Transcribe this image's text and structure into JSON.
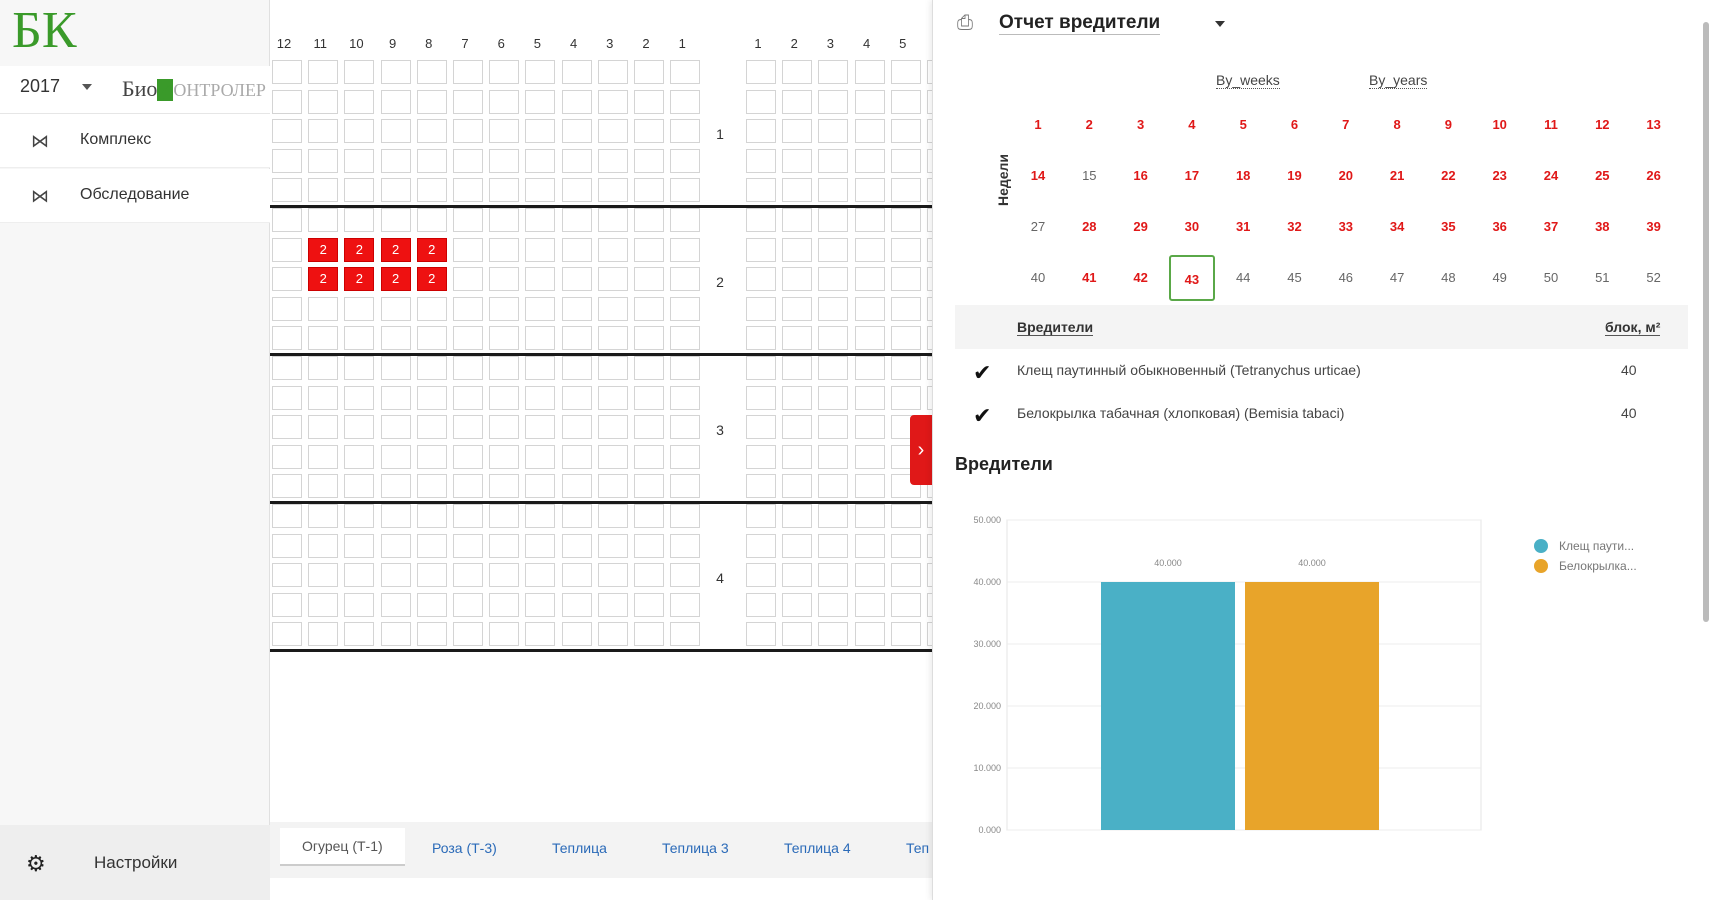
{
  "sidebar": {
    "logo": "БК",
    "year": "2017",
    "brand_prefix": "Био",
    "brand_suffix": "ОНТРОЛЕР",
    "items": [
      {
        "label": "Комплекс",
        "icon": "network-icon"
      },
      {
        "label": "Обследование",
        "icon": "network-icon"
      }
    ],
    "settings_label": "Настройки"
  },
  "grid": {
    "left_columns": [
      "12",
      "11",
      "10",
      "9",
      "8",
      "7",
      "6",
      "5",
      "4",
      "3",
      "2",
      "1"
    ],
    "right_columns": [
      "1",
      "2",
      "3",
      "4",
      "5"
    ],
    "zones": [
      "1",
      "2",
      "3",
      "4"
    ],
    "marked_value": "2"
  },
  "tabs": [
    "Огурец (Т-1)",
    "Роза (Т-3)",
    "Теплица",
    "Теплица 3",
    "Теплица 4",
    "Теп"
  ],
  "panel": {
    "report_title": "Отчет вредители",
    "view_weeks": "By_weeks",
    "view_years": "By_years",
    "weeks_caption": "Недели",
    "weeks": [
      {
        "n": "1",
        "red": true
      },
      {
        "n": "2",
        "red": true
      },
      {
        "n": "3",
        "red": true
      },
      {
        "n": "4",
        "red": true
      },
      {
        "n": "5",
        "red": true
      },
      {
        "n": "6",
        "red": true
      },
      {
        "n": "7",
        "red": true
      },
      {
        "n": "8",
        "red": true
      },
      {
        "n": "9",
        "red": true
      },
      {
        "n": "10",
        "red": true
      },
      {
        "n": "11",
        "red": true
      },
      {
        "n": "12",
        "red": true
      },
      {
        "n": "13",
        "red": true
      },
      {
        "n": "14",
        "red": true
      },
      {
        "n": "15",
        "red": false
      },
      {
        "n": "16",
        "red": true
      },
      {
        "n": "17",
        "red": true
      },
      {
        "n": "18",
        "red": true
      },
      {
        "n": "19",
        "red": true
      },
      {
        "n": "20",
        "red": true
      },
      {
        "n": "21",
        "red": true
      },
      {
        "n": "22",
        "red": true
      },
      {
        "n": "23",
        "red": true
      },
      {
        "n": "24",
        "red": true
      },
      {
        "n": "25",
        "red": true
      },
      {
        "n": "26",
        "red": true
      },
      {
        "n": "27",
        "red": false
      },
      {
        "n": "28",
        "red": true
      },
      {
        "n": "29",
        "red": true
      },
      {
        "n": "30",
        "red": true
      },
      {
        "n": "31",
        "red": true
      },
      {
        "n": "32",
        "red": true
      },
      {
        "n": "33",
        "red": true
      },
      {
        "n": "34",
        "red": true
      },
      {
        "n": "35",
        "red": true
      },
      {
        "n": "36",
        "red": true
      },
      {
        "n": "37",
        "red": true
      },
      {
        "n": "38",
        "red": true
      },
      {
        "n": "39",
        "red": true
      },
      {
        "n": "40",
        "red": false
      },
      {
        "n": "41",
        "red": true
      },
      {
        "n": "42",
        "red": true
      },
      {
        "n": "43",
        "red": true,
        "selected": true
      },
      {
        "n": "44",
        "red": false
      },
      {
        "n": "45",
        "red": false
      },
      {
        "n": "46",
        "red": false
      },
      {
        "n": "47",
        "red": false
      },
      {
        "n": "48",
        "red": false
      },
      {
        "n": "49",
        "red": false
      },
      {
        "n": "50",
        "red": false
      },
      {
        "n": "51",
        "red": false
      },
      {
        "n": "52",
        "red": false
      }
    ],
    "table": {
      "col_name": "Вредители",
      "col_value": "блок, м²",
      "rows": [
        {
          "name": "Клещ паутинный обыкновенный (Tetranychus urticae)",
          "value": "40"
        },
        {
          "name": "Белокрылка табачная (хлопковая) (Bemisia tabaci)",
          "value": "40"
        }
      ]
    },
    "chart_title": "Вредители"
  },
  "chart_data": {
    "type": "bar",
    "title": "",
    "xlabel": "",
    "ylabel": "",
    "ylim": [
      0,
      50
    ],
    "yticks": [
      "0.000",
      "10.000",
      "20.000",
      "30.000",
      "40.000",
      "50.000"
    ],
    "series": [
      {
        "name": "Клещ паути...",
        "values": [
          40
        ],
        "label": "40.000",
        "color": "#4ab0c6"
      },
      {
        "name": "Белокрылка...",
        "values": [
          40
        ],
        "label": "40.000",
        "color": "#e8a42a"
      }
    ],
    "grid": true,
    "legend": "top-right"
  },
  "colors": {
    "accent_red": "#e01818",
    "brand_green": "#3a9a2a"
  }
}
